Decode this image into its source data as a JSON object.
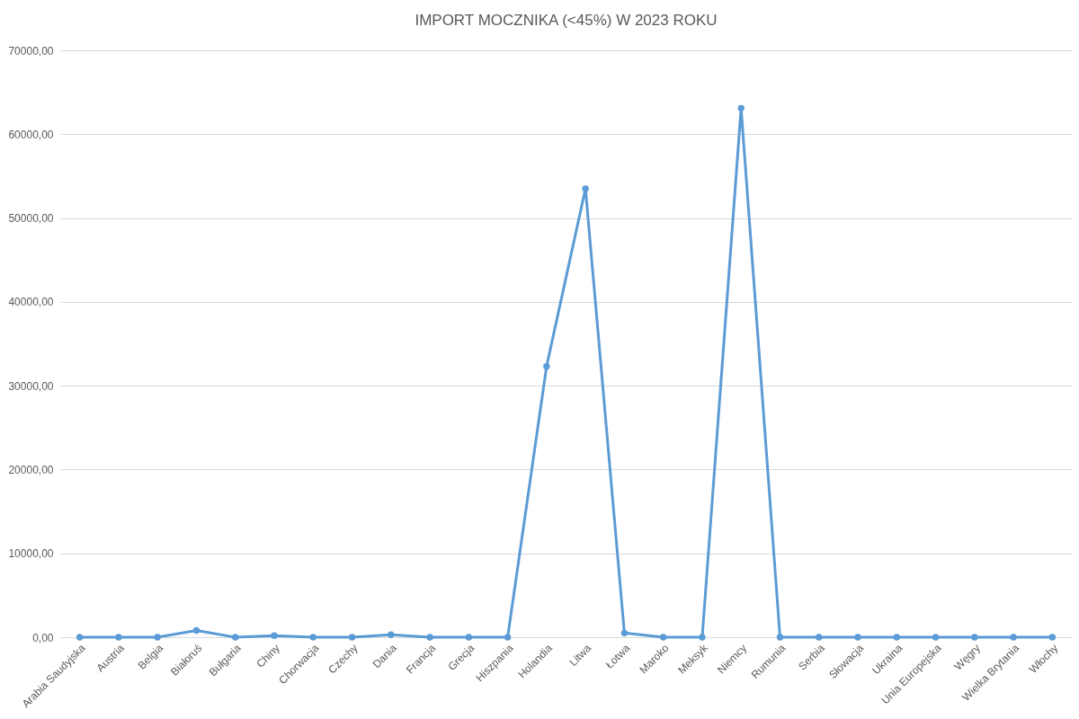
{
  "chart_data": {
    "type": "line",
    "title": "IMPORT MOCZNIKA (<45%) W 2023 ROKU",
    "categories": [
      "Arabia Saudyjska",
      "Austria",
      "Belgia",
      "Białoruś",
      "Bułgaria",
      "Chiny",
      "Chorwacja",
      "Czechy",
      "Dania",
      "Francja",
      "Grecja",
      "Hiszpania",
      "Holandia",
      "Litwa",
      "Łotwa",
      "Maroko",
      "Meksyk",
      "Niemcy",
      "Rumunia",
      "Serbia",
      "Słowacja",
      "Ukraina",
      "Unia Europejska",
      "Węgry",
      "Wielka Brytania",
      "Włochy"
    ],
    "series": [
      {
        "color": "#5b9bd5",
        "values": [
          0,
          0,
          0,
          800,
          0,
          200,
          0,
          0,
          300,
          0,
          0,
          0,
          32300,
          53500,
          500,
          0,
          0,
          63100,
          0,
          0,
          0,
          0,
          0,
          0,
          0,
          0
        ]
      }
    ],
    "ylim": [
      0,
      70000
    ],
    "yticks": [
      {
        "value": 0,
        "label": "0,00"
      },
      {
        "value": 10000,
        "label": "10000,00"
      },
      {
        "value": 20000,
        "label": "20000,00"
      },
      {
        "value": 30000,
        "label": "30000,00"
      },
      {
        "value": 40000,
        "label": "40000,00"
      },
      {
        "value": 50000,
        "label": "50000,00"
      },
      {
        "value": 60000,
        "label": "60000,00"
      },
      {
        "value": 70000,
        "label": "70000,00"
      }
    ],
    "grid": "y",
    "marker": "circle",
    "line_style": "solid"
  }
}
